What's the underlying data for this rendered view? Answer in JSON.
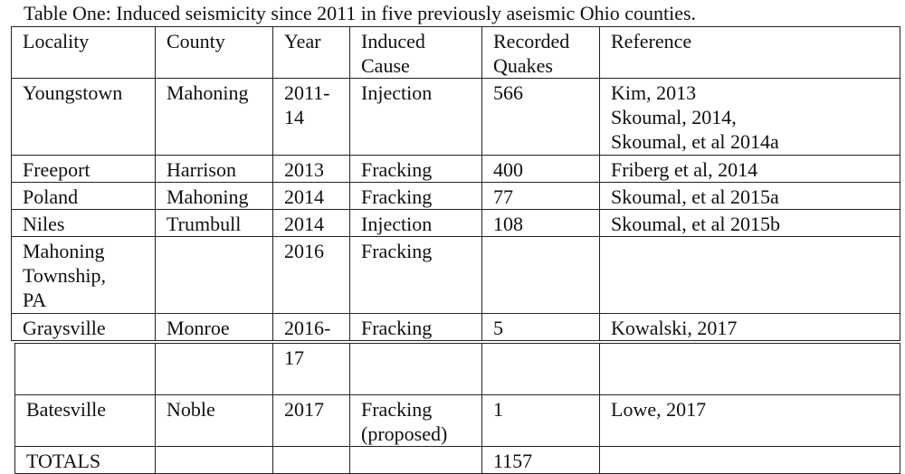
{
  "caption": "Table One: Induced seismicity since 2011 in five previously aseismic Ohio counties.",
  "headers": [
    "Locality",
    "County",
    "Year",
    "Induced Cause",
    "Recorded Quakes",
    "Reference"
  ],
  "header_lines": {
    "cause": [
      "Induced",
      "Cause"
    ],
    "quakes": [
      "Recorded",
      "Quakes"
    ]
  },
  "rows": [
    {
      "locality": [
        "Youngstown"
      ],
      "county": "Mahoning",
      "year": [
        "2011-",
        "14"
      ],
      "cause": [
        "Injection"
      ],
      "quakes": "566",
      "reference": [
        "Kim, 2013",
        "Skoumal, 2014,",
        "Skoumal, et al 2014a"
      ]
    },
    {
      "locality": [
        "Freeport"
      ],
      "county": "Harrison",
      "year": [
        "2013"
      ],
      "cause": [
        "Fracking"
      ],
      "quakes": "400",
      "reference": [
        "Friberg et al, 2014"
      ]
    },
    {
      "locality": [
        "Poland"
      ],
      "county": "Mahoning",
      "year": [
        "2014"
      ],
      "cause": [
        "Fracking"
      ],
      "quakes": "77",
      "reference": [
        "Skoumal, et al 2015a"
      ]
    },
    {
      "locality": [
        "Niles"
      ],
      "county": "Trumbull",
      "year": [
        "2014"
      ],
      "cause": [
        "Injection"
      ],
      "quakes": "108",
      "reference": [
        "Skoumal, et al 2015b"
      ]
    },
    {
      "locality": [
        "Mahoning",
        "Township,",
        "PA"
      ],
      "county": "",
      "year": [
        "2016"
      ],
      "cause": [
        "Fracking"
      ],
      "quakes": "",
      "reference": [
        ""
      ]
    },
    {
      "locality": [
        "Graysville"
      ],
      "county": "Monroe",
      "year": [
        "2016-"
      ],
      "cause": [
        "Fracking"
      ],
      "quakes": "5",
      "reference": [
        "Kowalski, 2017"
      ]
    }
  ],
  "rows2": [
    {
      "locality": [
        "",
        ""
      ],
      "county": "",
      "year": [
        "17"
      ],
      "cause": [
        ""
      ],
      "quakes": "",
      "reference": [
        ""
      ]
    },
    {
      "locality": [
        "Batesville"
      ],
      "county": "Noble",
      "year": [
        "2017"
      ],
      "cause": [
        "Fracking",
        "(proposed)"
      ],
      "quakes": "1",
      "reference": [
        "Lowe, 2017"
      ]
    },
    {
      "locality": [
        "TOTALS"
      ],
      "county": "",
      "year": [
        ""
      ],
      "cause": [
        ""
      ],
      "quakes": "1157",
      "reference": [
        ""
      ]
    }
  ]
}
